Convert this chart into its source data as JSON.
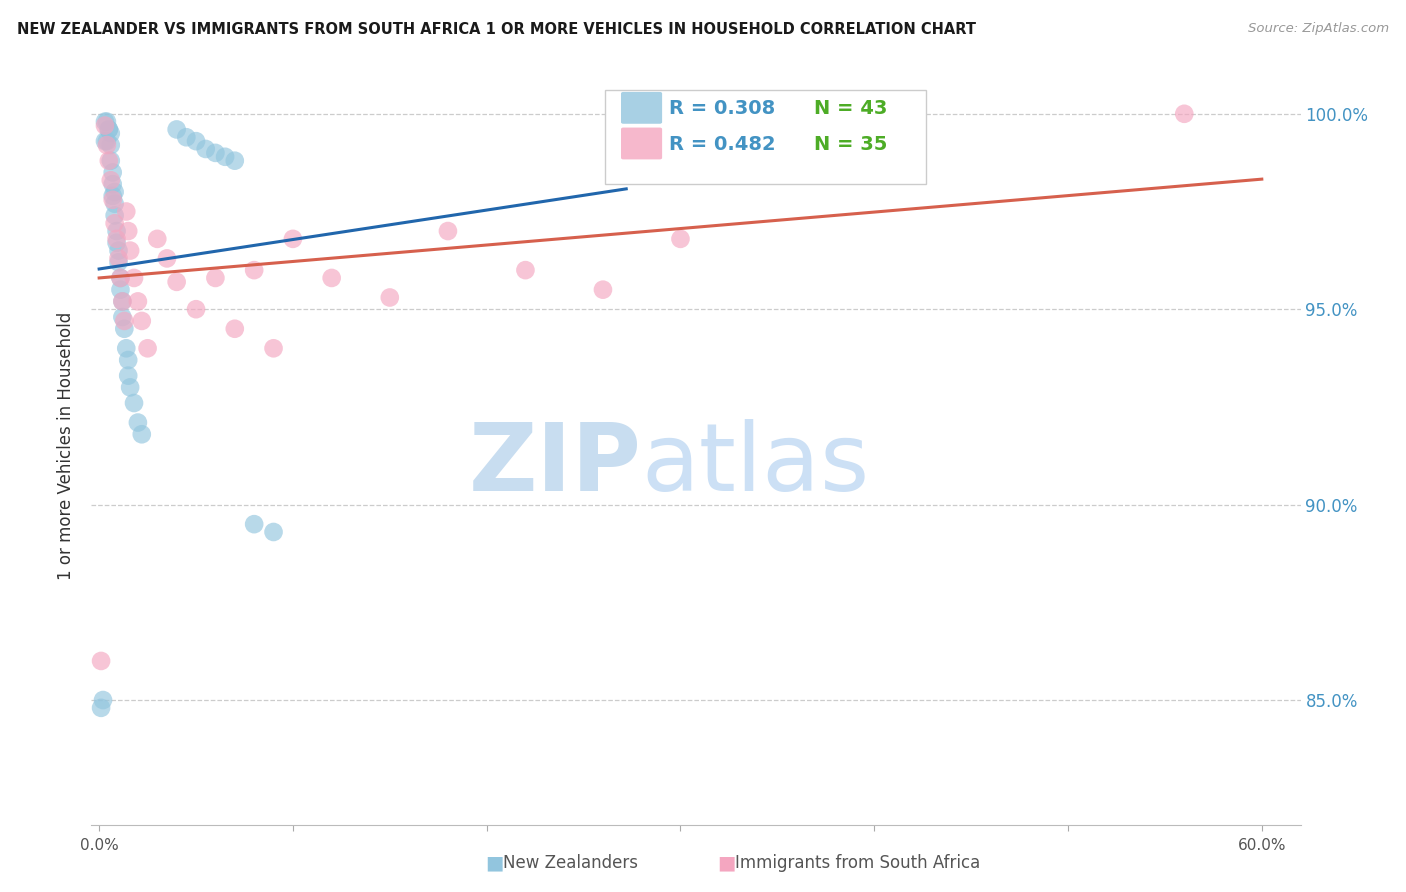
{
  "title": "NEW ZEALANDER VS IMMIGRANTS FROM SOUTH AFRICA 1 OR MORE VEHICLES IN HOUSEHOLD CORRELATION CHART",
  "source": "Source: ZipAtlas.com",
  "ylabel": "1 or more Vehicles in Household",
  "ytick_values": [
    0.85,
    0.9,
    0.95,
    1.0
  ],
  "ytick_labels": [
    "85.0%",
    "90.0%",
    "95.0%",
    "100.0%"
  ],
  "xlim": [
    -0.004,
    0.62
  ],
  "ylim": [
    0.818,
    1.012
  ],
  "legend_r_blue": "R = 0.308",
  "legend_n_blue": "N = 43",
  "legend_r_pink": "R = 0.482",
  "legend_n_pink": "N = 35",
  "legend_label_blue": "New Zealanders",
  "legend_label_pink": "Immigrants from South Africa",
  "color_blue_dot": "#92c5de",
  "color_pink_dot": "#f4a6c0",
  "color_blue_line": "#2166ac",
  "color_pink_line": "#d6604d",
  "color_r_text": "#4393c3",
  "color_n_text": "#4dac26",
  "color_grid": "#cccccc",
  "color_watermark_zip": "#c8ddf0",
  "color_watermark_atlas": "#cce0f5",
  "blue_x": [
    0.001,
    0.002,
    0.003,
    0.003,
    0.004,
    0.004,
    0.005,
    0.005,
    0.006,
    0.006,
    0.006,
    0.007,
    0.007,
    0.007,
    0.008,
    0.008,
    0.008,
    0.009,
    0.009,
    0.01,
    0.01,
    0.011,
    0.011,
    0.012,
    0.012,
    0.013,
    0.014,
    0.015,
    0.015,
    0.016,
    0.018,
    0.02,
    0.022,
    0.04,
    0.045,
    0.05,
    0.055,
    0.06,
    0.065,
    0.07,
    0.08,
    0.09,
    0.27
  ],
  "blue_y": [
    0.848,
    0.85,
    0.998,
    0.993,
    0.998,
    0.993,
    0.996,
    0.996,
    0.995,
    0.992,
    0.988,
    0.985,
    0.982,
    0.979,
    0.98,
    0.977,
    0.974,
    0.97,
    0.967,
    0.965,
    0.962,
    0.958,
    0.955,
    0.952,
    0.948,
    0.945,
    0.94,
    0.937,
    0.933,
    0.93,
    0.926,
    0.921,
    0.918,
    0.996,
    0.994,
    0.993,
    0.991,
    0.99,
    0.989,
    0.988,
    0.895,
    0.893,
    0.998
  ],
  "pink_x": [
    0.001,
    0.003,
    0.004,
    0.005,
    0.006,
    0.007,
    0.008,
    0.009,
    0.01,
    0.011,
    0.012,
    0.013,
    0.014,
    0.015,
    0.016,
    0.018,
    0.02,
    0.022,
    0.025,
    0.03,
    0.035,
    0.04,
    0.05,
    0.06,
    0.07,
    0.08,
    0.09,
    0.1,
    0.12,
    0.15,
    0.18,
    0.22,
    0.26,
    0.3,
    0.56
  ],
  "pink_y": [
    0.86,
    0.997,
    0.992,
    0.988,
    0.983,
    0.978,
    0.972,
    0.968,
    0.963,
    0.958,
    0.952,
    0.947,
    0.975,
    0.97,
    0.965,
    0.958,
    0.952,
    0.947,
    0.94,
    0.968,
    0.963,
    0.957,
    0.95,
    0.958,
    0.945,
    0.96,
    0.94,
    0.968,
    0.958,
    0.953,
    0.97,
    0.96,
    0.955,
    0.968,
    1.0
  ],
  "dot_size": 180
}
